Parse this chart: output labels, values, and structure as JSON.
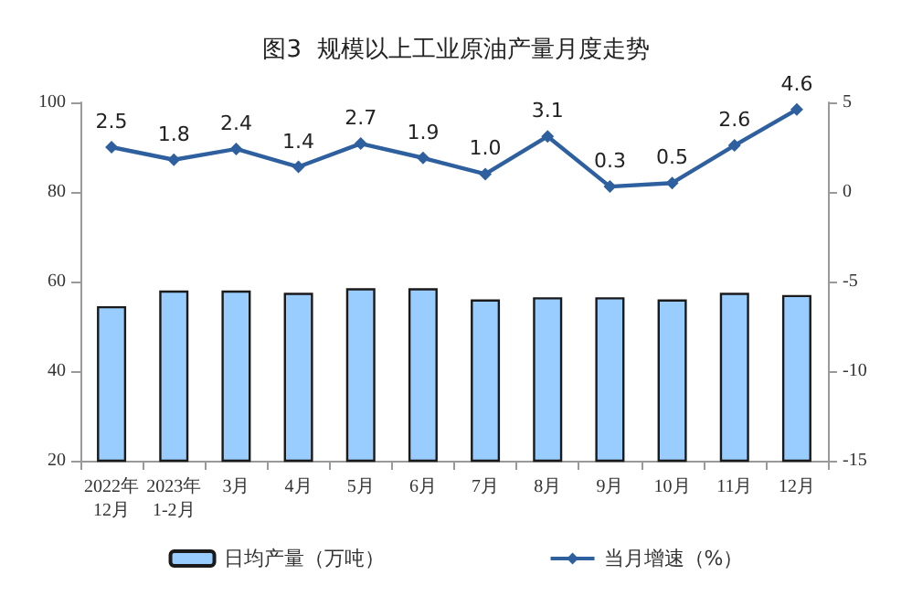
{
  "chart_data": {
    "type": "bar",
    "title": "图3  规模以上工业原油产量月度走势",
    "categories": [
      "2022年\n12月",
      "2023年\n1-2月",
      "3月",
      "4月",
      "5月",
      "6月",
      "7月",
      "8月",
      "9月",
      "10月",
      "11月",
      "12月"
    ],
    "series": [
      {
        "name": "日均产量（万吨）",
        "color": "#99ccff",
        "values": [
          54.5,
          58,
          58,
          57.5,
          58.5,
          58.5,
          56,
          56.5,
          56.5,
          56,
          57.5,
          57
        ]
      },
      {
        "name": "当月增速（%）",
        "type": "line",
        "axis": "y2",
        "color": "#2e5f9e",
        "marker": "diamond",
        "values": [
          2.5,
          1.8,
          2.4,
          1.4,
          2.7,
          1.9,
          1.0,
          3.1,
          0.3,
          0.5,
          2.6,
          4.6
        ],
        "value_labels": [
          "2.5",
          "1.8",
          "2.4",
          "1.4",
          "2.7",
          "1.9",
          "1.0",
          "3.1",
          "0.3",
          "0.5",
          "2.6",
          "4.6"
        ]
      }
    ],
    "ylim": [
      20,
      100
    ],
    "yticks": [
      20,
      40,
      60,
      80,
      100
    ],
    "y2lim": [
      -15,
      5
    ],
    "y2ticks": [
      -15,
      -10,
      -5,
      0,
      5
    ],
    "grid": false,
    "legend": "bottom"
  }
}
